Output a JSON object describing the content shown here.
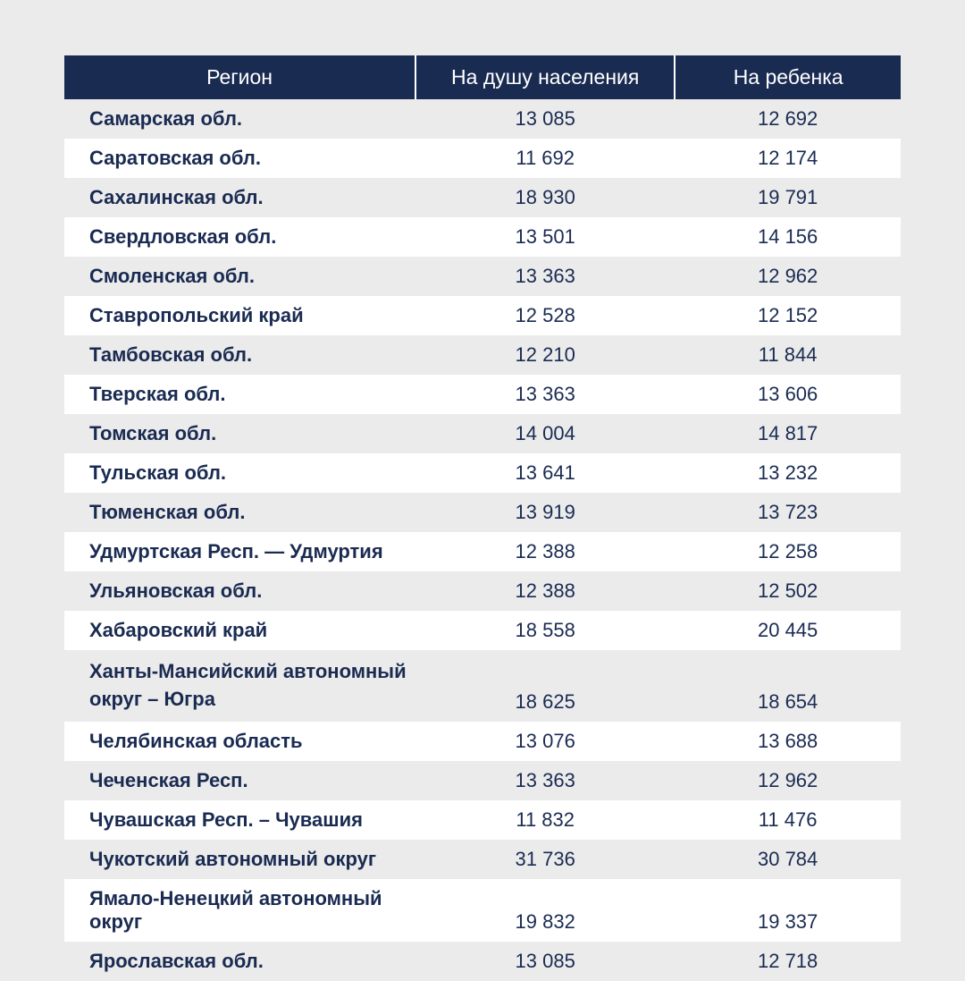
{
  "table": {
    "type": "table",
    "header_bg_color": "#1a2b52",
    "header_text_color": "#ffffff",
    "row_odd_bg": "#ebebeb",
    "row_even_bg": "#ffffff",
    "text_color": "#1a2b52",
    "page_bg": "#ebebeb",
    "header_fontsize": 23,
    "body_fontsize": 22,
    "region_fontweight": 700,
    "value_fontweight": 400,
    "columns": [
      {
        "label": "Регион",
        "width": "42%",
        "align": "left"
      },
      {
        "label": "На душу населения",
        "width": "31%",
        "align": "center"
      },
      {
        "label": "На ребенка",
        "width": "27%",
        "align": "center"
      }
    ],
    "rows": [
      {
        "region": "Самарская обл.",
        "per_capita": "13 085",
        "per_child": "12 692"
      },
      {
        "region": "Саратовская обл.",
        "per_capita": "11 692",
        "per_child": "12 174"
      },
      {
        "region": "Сахалинская обл.",
        "per_capita": "18 930",
        "per_child": "19 791"
      },
      {
        "region": "Свердловская обл.",
        "per_capita": "13 501",
        "per_child": "14 156"
      },
      {
        "region": "Смоленская обл.",
        "per_capita": "13 363",
        "per_child": "12 962"
      },
      {
        "region": "Ставропольский край",
        "per_capita": "12 528",
        "per_child": "12 152"
      },
      {
        "region": "Тамбовская обл.",
        "per_capita": "12 210",
        "per_child": "11 844"
      },
      {
        "region": "Тверская обл.",
        "per_capita": "13 363",
        "per_child": "13 606"
      },
      {
        "region": "Томская обл.",
        "per_capita": "14 004",
        "per_child": "14 817"
      },
      {
        "region": "Тульская обл.",
        "per_capita": "13 641",
        "per_child": "13 232"
      },
      {
        "region": "Тюменская обл.",
        "per_capita": "13 919",
        "per_child": "13 723"
      },
      {
        "region": "Удмуртская Респ. — Удмуртия",
        "per_capita": "12 388",
        "per_child": "12 258"
      },
      {
        "region": "Ульяновская обл.",
        "per_capita": "12 388",
        "per_child": "12 502"
      },
      {
        "region": "Хабаровский край",
        "per_capita": "18 558",
        "per_child": "20 445"
      },
      {
        "region": "Ханты-Мансийский автономный округ – Югра",
        "per_capita": "18 625",
        "per_child": "18 654",
        "multiline": true
      },
      {
        "region": "Челябинская область",
        "per_capita": "13 076",
        "per_child": "13 688"
      },
      {
        "region": "Чеченская Респ.",
        "per_capita": "13 363",
        "per_child": "12 962"
      },
      {
        "region": "Чувашская Респ. – Чувашия",
        "per_capita": "11 832",
        "per_child": "11 476"
      },
      {
        "region": "Чукотский автономный округ",
        "per_capita": "31 736",
        "per_child": "30 784"
      },
      {
        "region": "Ямало-Ненецкий автономный округ",
        "per_capita": "19 832",
        "per_child": "19 337"
      },
      {
        "region": "Ярославская обл.",
        "per_capita": "13 085",
        "per_child": "12 718"
      }
    ]
  }
}
